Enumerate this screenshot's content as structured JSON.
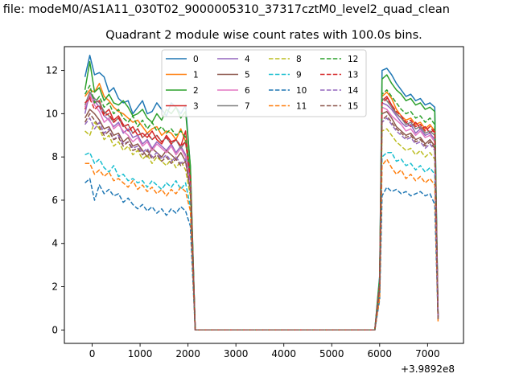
{
  "figure": {
    "suptitle": "n file: modeM0/AS1A11_030T02_9000005310_37317cztM0_level2_quad_clean",
    "title": "Quadrant 2 module wise count rates with 100.0s bins.",
    "x_offset_label": "+3.9892e8"
  },
  "chart_data": {
    "type": "line",
    "title": "Quadrant 2 module wise count rates with 100.0s bins.",
    "xlabel": "",
    "ylabel": "",
    "xlim": [
      -580,
      7750
    ],
    "ylim": [
      -0.62,
      13.1
    ],
    "xticks": [
      0,
      1000,
      2000,
      3000,
      4000,
      5000,
      6000,
      7000
    ],
    "xtick_labels": [
      "0",
      "1000",
      "2000",
      "3000",
      "4000",
      "5000",
      "6000",
      "7000"
    ],
    "yticks": [
      0,
      2,
      4,
      6,
      8,
      10,
      12
    ],
    "ytick_labels": [
      "0",
      "2",
      "4",
      "6",
      "8",
      "10",
      "12"
    ],
    "grid": false,
    "legend": {
      "placement": "top-center",
      "columns": 4
    },
    "colors": [
      "#1f77b4",
      "#ff7f0e",
      "#2ca02c",
      "#d62728",
      "#9467bd",
      "#8c564b",
      "#e377c2",
      "#7f7f7f",
      "#bcbd22",
      "#17becf",
      "#1f77b4",
      "#ff7f0e",
      "#2ca02c",
      "#d62728",
      "#9467bd",
      "#8c564b"
    ],
    "segment_a_x": [
      -150,
      -50,
      50,
      150,
      250,
      350,
      450,
      550,
      650,
      750,
      850,
      950,
      1050,
      1150,
      1250,
      1350,
      1450,
      1550,
      1650,
      1750,
      1850,
      1950,
      2050,
      2150
    ],
    "gap_x": [
      2200,
      5900
    ],
    "segment_b_x": [
      6000,
      6050,
      6150,
      6250,
      6350,
      6450,
      6550,
      6650,
      6750,
      6850,
      6950,
      7050,
      7150,
      7220
    ],
    "series": [
      {
        "name": "0",
        "style": "solid",
        "a": [
          11.7,
          12.7,
          11.8,
          11.9,
          11.7,
          11.0,
          11.2,
          10.7,
          10.5,
          10.6,
          10.0,
          10.3,
          10.6,
          10.0,
          10.1,
          10.5,
          10.2,
          9.9,
          10.5,
          10.3,
          10.0,
          10.4,
          7.5,
          0.0
        ],
        "b": [
          2.5,
          12.0,
          12.1,
          11.8,
          11.4,
          11.1,
          10.8,
          10.9,
          10.6,
          10.7,
          10.4,
          10.5,
          10.3,
          0.7
        ]
      },
      {
        "name": "1",
        "style": "solid",
        "a": [
          10.8,
          11.1,
          11.0,
          11.4,
          10.8,
          10.6,
          10.3,
          10.1,
          10.0,
          9.8,
          9.6,
          9.7,
          9.4,
          9.1,
          9.3,
          9.4,
          9.0,
          9.2,
          9.1,
          8.8,
          9.3,
          8.7,
          7.0,
          0.0
        ],
        "b": [
          2.2,
          10.8,
          11.0,
          10.7,
          10.2,
          9.9,
          9.7,
          9.8,
          9.5,
          9.6,
          9.3,
          9.5,
          9.2,
          0.6
        ]
      },
      {
        "name": "2",
        "style": "solid",
        "a": [
          11.1,
          12.4,
          11.0,
          11.2,
          10.6,
          10.9,
          10.5,
          10.4,
          10.6,
          10.3,
          9.9,
          10.0,
          10.2,
          9.8,
          9.6,
          10.0,
          9.7,
          10.2,
          10.0,
          10.3,
          9.8,
          10.1,
          7.6,
          0.0
        ],
        "b": [
          2.4,
          11.6,
          11.8,
          11.4,
          11.1,
          10.9,
          10.6,
          10.7,
          10.4,
          10.5,
          10.2,
          10.3,
          10.1,
          0.7
        ]
      },
      {
        "name": "3",
        "style": "solid",
        "a": [
          10.2,
          10.8,
          10.5,
          10.6,
          10.0,
          10.2,
          9.7,
          9.9,
          9.5,
          9.2,
          9.4,
          9.0,
          9.1,
          8.9,
          9.2,
          8.8,
          8.6,
          9.0,
          8.7,
          8.8,
          8.5,
          9.2,
          7.0,
          0.0
        ],
        "b": [
          2.1,
          10.6,
          10.8,
          10.4,
          10.0,
          9.8,
          9.6,
          9.4,
          9.6,
          9.3,
          9.4,
          9.1,
          9.3,
          0.6
        ]
      },
      {
        "name": "4",
        "style": "solid",
        "a": [
          10.0,
          11.0,
          10.6,
          10.3,
          9.9,
          9.7,
          9.4,
          9.6,
          9.1,
          9.3,
          8.9,
          9.0,
          8.6,
          8.8,
          8.4,
          8.7,
          8.5,
          8.3,
          8.6,
          8.2,
          8.5,
          8.1,
          6.8,
          0.0
        ],
        "b": [
          2.0,
          10.5,
          10.4,
          10.2,
          9.9,
          9.6,
          9.4,
          9.5,
          9.1,
          9.3,
          9.0,
          9.1,
          8.8,
          0.6
        ]
      },
      {
        "name": "5",
        "style": "solid",
        "a": [
          9.8,
          10.2,
          10.0,
          9.7,
          9.3,
          9.4,
          9.0,
          9.1,
          8.7,
          8.9,
          8.5,
          8.6,
          8.3,
          8.0,
          8.4,
          8.2,
          8.0,
          8.3,
          8.1,
          7.9,
          8.2,
          7.8,
          6.5,
          0.0
        ],
        "b": [
          1.9,
          10.0,
          10.1,
          9.8,
          9.4,
          9.2,
          9.0,
          9.1,
          8.8,
          8.9,
          8.6,
          8.8,
          8.5,
          0.5
        ]
      },
      {
        "name": "6",
        "style": "solid",
        "a": [
          10.3,
          10.9,
          10.4,
          10.1,
          9.6,
          9.8,
          9.3,
          9.5,
          9.2,
          9.0,
          8.7,
          8.9,
          8.5,
          8.7,
          8.3,
          8.6,
          8.4,
          8.2,
          8.5,
          8.1,
          8.4,
          8.0,
          6.7,
          0.0
        ],
        "b": [
          2.0,
          10.3,
          10.2,
          9.9,
          9.7,
          9.5,
          9.2,
          9.3,
          9.0,
          9.2,
          8.9,
          9.0,
          8.7,
          0.6
        ]
      },
      {
        "name": "7",
        "style": "solid",
        "a": [
          10.4,
          11.0,
          10.7,
          10.5,
          10.1,
          9.9,
          9.6,
          9.8,
          9.4,
          9.5,
          9.1,
          9.3,
          8.9,
          9.1,
          8.8,
          9.0,
          8.7,
          8.9,
          8.6,
          8.8,
          8.4,
          8.7,
          7.0,
          0.0
        ],
        "b": [
          2.1,
          10.7,
          10.6,
          10.3,
          10.0,
          9.8,
          9.5,
          9.6,
          9.3,
          9.4,
          9.1,
          9.2,
          9.0,
          0.6
        ]
      },
      {
        "name": "8",
        "style": "dashed",
        "a": [
          9.2,
          9.0,
          9.6,
          9.3,
          8.8,
          9.0,
          8.5,
          8.7,
          8.3,
          8.5,
          8.1,
          8.3,
          7.9,
          8.1,
          7.7,
          8.0,
          7.8,
          7.6,
          7.9,
          7.5,
          7.8,
          7.4,
          6.2,
          0.0
        ],
        "b": [
          1.8,
          9.2,
          9.3,
          9.0,
          8.7,
          8.5,
          8.3,
          8.4,
          8.1,
          8.3,
          8.0,
          8.2,
          7.9,
          0.5
        ]
      },
      {
        "name": "9",
        "style": "dashed",
        "a": [
          8.1,
          8.2,
          7.7,
          7.9,
          7.5,
          7.3,
          7.6,
          7.1,
          7.2,
          6.9,
          7.0,
          6.8,
          6.9,
          6.6,
          6.9,
          6.7,
          6.5,
          6.8,
          6.6,
          6.9,
          6.5,
          6.8,
          5.7,
          0.0
        ],
        "b": [
          1.6,
          8.0,
          8.2,
          8.2,
          7.8,
          7.9,
          7.6,
          7.7,
          7.4,
          7.6,
          7.3,
          7.5,
          7.2,
          0.5
        ]
      },
      {
        "name": "10",
        "style": "dashed",
        "a": [
          6.8,
          7.0,
          6.0,
          6.7,
          6.3,
          6.5,
          6.2,
          6.3,
          5.9,
          6.1,
          5.8,
          5.6,
          5.8,
          5.5,
          5.7,
          5.4,
          5.6,
          5.3,
          5.6,
          5.4,
          5.7,
          5.5,
          4.8,
          0.0
        ],
        "b": [
          1.4,
          6.2,
          6.6,
          6.4,
          6.5,
          6.3,
          6.4,
          6.2,
          6.3,
          6.4,
          6.2,
          6.3,
          5.8,
          0.5
        ]
      },
      {
        "name": "11",
        "style": "dashed",
        "a": [
          7.7,
          7.7,
          7.2,
          7.4,
          7.1,
          7.3,
          6.9,
          7.0,
          6.8,
          6.6,
          6.9,
          6.5,
          6.7,
          6.4,
          6.6,
          6.3,
          6.5,
          6.2,
          6.5,
          6.3,
          6.6,
          6.4,
          5.5,
          0.0
        ],
        "b": [
          1.5,
          7.6,
          7.9,
          7.5,
          7.2,
          7.4,
          7.0,
          7.2,
          6.9,
          7.1,
          6.8,
          7.0,
          6.7,
          0.4
        ]
      },
      {
        "name": "12",
        "style": "dashed",
        "a": [
          10.9,
          11.3,
          10.5,
          10.8,
          10.3,
          10.5,
          10.0,
          10.2,
          9.8,
          9.6,
          9.9,
          9.4,
          9.7,
          9.3,
          9.6,
          9.2,
          9.4,
          9.1,
          9.3,
          9.0,
          9.2,
          8.9,
          7.2,
          0.0
        ],
        "b": [
          2.2,
          10.9,
          11.1,
          10.8,
          10.5,
          10.2,
          10.0,
          10.1,
          9.8,
          9.9,
          9.6,
          9.8,
          9.5,
          0.6
        ]
      },
      {
        "name": "13",
        "style": "dashed",
        "a": [
          10.5,
          10.7,
          10.2,
          10.4,
          9.9,
          10.0,
          9.6,
          9.8,
          9.4,
          9.5,
          9.1,
          9.3,
          8.9,
          9.1,
          8.8,
          9.0,
          8.7,
          8.9,
          8.6,
          8.8,
          8.5,
          8.7,
          7.0,
          0.0
        ],
        "b": [
          2.1,
          10.5,
          10.7,
          10.4,
          10.1,
          9.9,
          9.6,
          9.7,
          9.4,
          9.5,
          9.2,
          9.4,
          9.1,
          0.6
        ]
      },
      {
        "name": "14",
        "style": "dashed",
        "a": [
          9.5,
          9.8,
          9.3,
          9.6,
          9.1,
          9.3,
          8.8,
          9.0,
          8.6,
          8.7,
          8.4,
          8.5,
          8.2,
          8.4,
          8.0,
          8.2,
          7.9,
          8.1,
          7.8,
          8.0,
          7.7,
          7.9,
          6.6,
          0.0
        ],
        "b": [
          1.9,
          9.6,
          9.8,
          9.5,
          9.2,
          9.0,
          8.8,
          8.9,
          8.6,
          8.7,
          8.4,
          8.6,
          8.3,
          0.5
        ]
      },
      {
        "name": "15",
        "style": "dashed",
        "a": [
          9.6,
          10.0,
          9.7,
          9.4,
          9.0,
          9.2,
          8.8,
          8.9,
          8.5,
          8.7,
          8.3,
          8.4,
          8.1,
          8.3,
          7.9,
          8.1,
          7.8,
          8.0,
          7.7,
          7.9,
          7.6,
          7.8,
          6.4,
          0.0
        ],
        "b": [
          1.9,
          9.7,
          9.9,
          9.6,
          9.3,
          9.1,
          8.9,
          9.0,
          8.7,
          8.8,
          8.5,
          8.7,
          8.4,
          0.5
        ]
      }
    ]
  }
}
